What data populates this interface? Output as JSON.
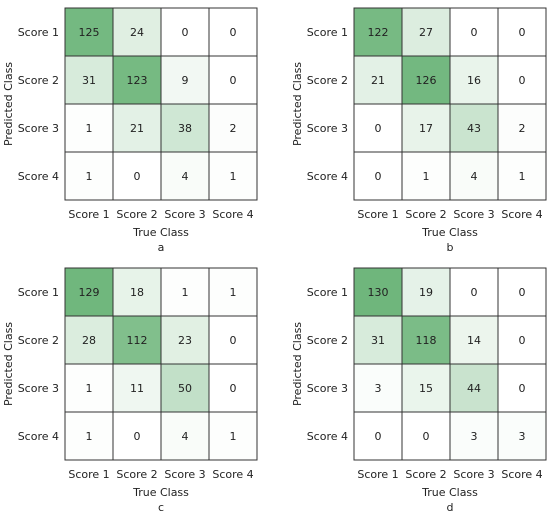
{
  "colors": {
    "low": "#ffffff",
    "high": "#6fb67c",
    "grid": "#333333",
    "text": "#222222"
  },
  "chart_data": [
    {
      "type": "heatmap",
      "panel_label": "a",
      "xlabel": "True Class",
      "ylabel": "Predicted Class",
      "x_categories": [
        "Score 1",
        "Score 2",
        "Score 3",
        "Score 4"
      ],
      "y_categories": [
        "Score 1",
        "Score 2",
        "Score 3",
        "Score 4"
      ],
      "values": [
        [
          125,
          24,
          0,
          0
        ],
        [
          31,
          123,
          9,
          0
        ],
        [
          1,
          21,
          38,
          2
        ],
        [
          1,
          0,
          4,
          1
        ]
      ]
    },
    {
      "type": "heatmap",
      "panel_label": "b",
      "xlabel": "True Class",
      "ylabel": "Predicted Class",
      "x_categories": [
        "Score 1",
        "Score 2",
        "Score 3",
        "Score 4"
      ],
      "y_categories": [
        "Score 1",
        "Score 2",
        "Score 3",
        "Score 4"
      ],
      "values": [
        [
          122,
          27,
          0,
          0
        ],
        [
          21,
          126,
          16,
          0
        ],
        [
          0,
          17,
          43,
          2
        ],
        [
          0,
          1,
          4,
          1
        ]
      ]
    },
    {
      "type": "heatmap",
      "panel_label": "c",
      "xlabel": "True Class",
      "ylabel": "Predicted Class",
      "x_categories": [
        "Score 1",
        "Score 2",
        "Score 3",
        "Score 4"
      ],
      "y_categories": [
        "Score 1",
        "Score 2",
        "Score 3",
        "Score 4"
      ],
      "values": [
        [
          129,
          18,
          1,
          1
        ],
        [
          28,
          112,
          23,
          0
        ],
        [
          1,
          11,
          50,
          0
        ],
        [
          1,
          0,
          4,
          1
        ]
      ]
    },
    {
      "type": "heatmap",
      "panel_label": "d",
      "xlabel": "True Class",
      "ylabel": "Predicted Class",
      "x_categories": [
        "Score 1",
        "Score 2",
        "Score 3",
        "Score 4"
      ],
      "y_categories": [
        "Score 1",
        "Score 2",
        "Score 3",
        "Score 4"
      ],
      "values": [
        [
          130,
          19,
          0,
          0
        ],
        [
          31,
          118,
          14,
          0
        ],
        [
          3,
          15,
          44,
          0
        ],
        [
          0,
          0,
          3,
          3
        ]
      ]
    }
  ]
}
